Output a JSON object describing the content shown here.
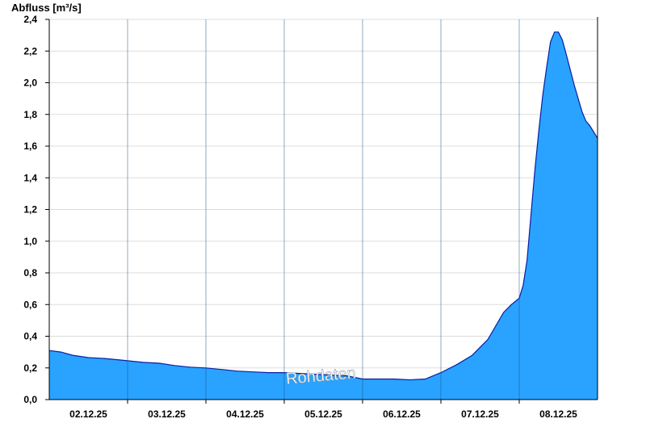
{
  "chart_data": {
    "type": "area",
    "ylabel": "Abfluss [m³/s]",
    "watermark": "Rohdaten",
    "ylim": [
      0,
      2.4
    ],
    "yticks": [
      "0,0",
      "0,2",
      "0,4",
      "0,6",
      "0,8",
      "1,0",
      "1,2",
      "1,4",
      "1,6",
      "1,8",
      "2,0",
      "2,2",
      "2,4"
    ],
    "xlim": [
      0,
      7
    ],
    "day_boundaries": [
      1,
      2,
      3,
      4,
      5,
      6
    ],
    "xtick_labels": [
      "02.12.25",
      "03.12.25",
      "04.12.25",
      "05.12.25",
      "06.12.25",
      "07.12.25",
      "08.12.25"
    ],
    "grid": true,
    "colors": {
      "fill": "#29a3ff",
      "line": "#0a1fa0",
      "grid": "#dddddd",
      "axis": "#000000"
    },
    "series": [
      {
        "x": [
          0,
          0.15,
          0.3,
          0.5,
          0.7,
          0.9,
          1.0,
          1.2,
          1.4,
          1.6,
          1.8,
          2.0,
          2.2,
          2.4,
          2.6,
          2.8,
          3.0,
          3.2,
          3.4,
          3.6,
          3.8,
          4.0,
          4.2,
          4.4,
          4.6,
          4.8,
          5.0,
          5.2,
          5.4,
          5.6,
          5.8,
          5.9,
          6.0,
          6.05,
          6.1,
          6.2,
          6.25,
          6.3,
          6.35,
          6.4,
          6.45,
          6.5,
          6.55,
          6.6,
          6.7,
          6.8,
          6.85,
          6.9,
          7.0
        ],
        "y": [
          0.31,
          0.3,
          0.28,
          0.265,
          0.26,
          0.25,
          0.245,
          0.235,
          0.23,
          0.215,
          0.205,
          0.2,
          0.19,
          0.18,
          0.175,
          0.17,
          0.17,
          0.165,
          0.16,
          0.155,
          0.15,
          0.13,
          0.13,
          0.13,
          0.125,
          0.13,
          0.17,
          0.22,
          0.28,
          0.38,
          0.55,
          0.6,
          0.64,
          0.72,
          0.88,
          1.45,
          1.7,
          1.92,
          2.1,
          2.26,
          2.32,
          2.32,
          2.27,
          2.18,
          1.99,
          1.82,
          1.76,
          1.73,
          1.65
        ]
      }
    ]
  }
}
